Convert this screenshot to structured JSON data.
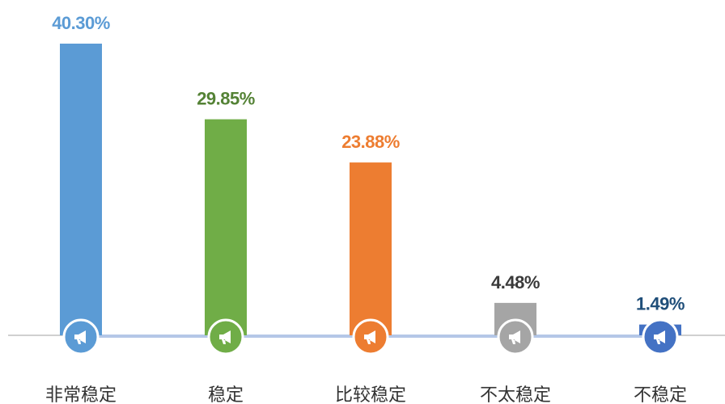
{
  "chart_data": {
    "type": "bar",
    "categories": [
      "非常稳定",
      "稳定",
      "比较稳定",
      "不太稳定",
      "不稳定"
    ],
    "values": [
      40.3,
      29.85,
      23.88,
      4.48,
      1.49
    ],
    "value_labels": [
      "40.30%",
      "29.85%",
      "23.88%",
      "4.48%",
      "1.49%"
    ],
    "colors": [
      "#5b9bd5",
      "#70ad47",
      "#ed7d31",
      "#a5a5a5",
      "#4472c4"
    ],
    "label_colors": [
      "#5b9bd5",
      "#548235",
      "#ed7d31",
      "#3a3a3a",
      "#1f4e79"
    ]
  }
}
